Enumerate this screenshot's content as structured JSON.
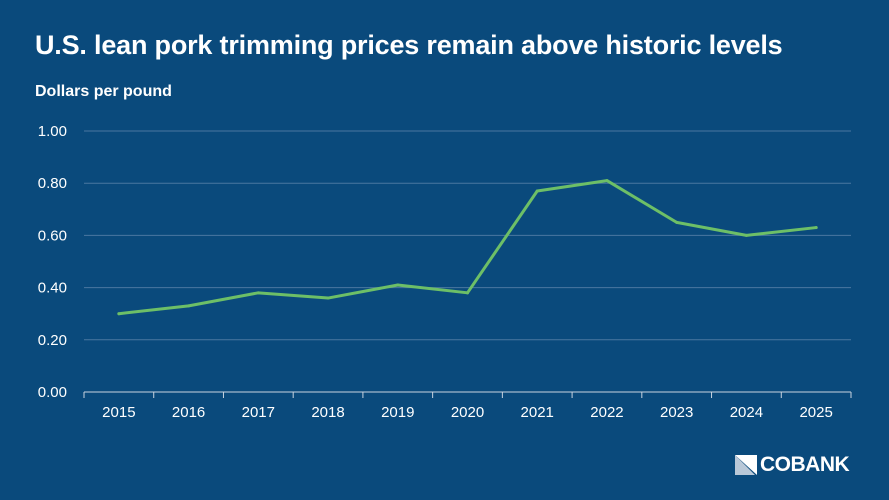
{
  "chart_data": {
    "type": "line",
    "title": "U.S. lean pork trimming prices remain above historic levels",
    "ylabel": "Dollars per pound",
    "xlabel": "",
    "categories": [
      "2015",
      "2016",
      "2017",
      "2018",
      "2019",
      "2020",
      "2021",
      "2022",
      "2023",
      "2024",
      "2025"
    ],
    "values": [
      0.3,
      0.33,
      0.38,
      0.36,
      0.41,
      0.38,
      0.77,
      0.81,
      0.65,
      0.6,
      0.63
    ],
    "ylim": [
      0,
      1.0
    ],
    "yticks": [
      "0.00",
      "0.20",
      "0.40",
      "0.60",
      "0.80",
      "1.00"
    ],
    "grid": true,
    "line_color": "#6dbf67",
    "background_color": "#0a4a7c"
  },
  "branding": {
    "logo_text": "COBANK"
  }
}
